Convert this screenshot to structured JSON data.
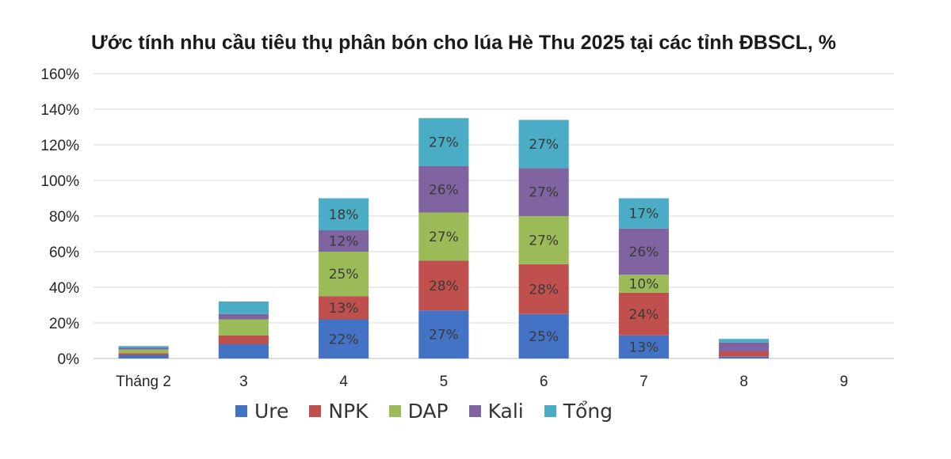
{
  "chart_data": {
    "type": "bar",
    "stacked": true,
    "title": "Ước tính nhu cầu tiêu thụ phân bón cho lúa Hè Thu 2025 tại các tỉnh ĐBSCL, %",
    "xlabel": "",
    "ylabel": "",
    "categories": [
      "Tháng 2",
      "3",
      "4",
      "5",
      "6",
      "7",
      "8",
      "9"
    ],
    "ylim": [
      0,
      160
    ],
    "yticks": [
      "0%",
      "20%",
      "40%",
      "60%",
      "80%",
      "100%",
      "120%",
      "140%",
      "160%"
    ],
    "grid": true,
    "legend_position": "bottom",
    "series": [
      {
        "name": "Ure",
        "color": "#4472C4",
        "values": [
          2,
          8,
          22,
          27,
          25,
          13,
          1,
          0
        ],
        "labels": [
          "",
          "",
          "22%",
          "27%",
          "25%",
          "13%",
          "",
          ""
        ]
      },
      {
        "name": "NPK",
        "color": "#C0504D",
        "values": [
          1,
          5,
          13,
          28,
          28,
          24,
          3,
          0
        ],
        "labels": [
          "",
          "",
          "13%",
          "28%",
          "28%",
          "24%",
          "",
          ""
        ]
      },
      {
        "name": "DAP",
        "color": "#9BBB59",
        "values": [
          2,
          9,
          25,
          27,
          27,
          10,
          0,
          0
        ],
        "labels": [
          "",
          "",
          "25%",
          "27%",
          "27%",
          "10%",
          "",
          ""
        ]
      },
      {
        "name": "Kali",
        "color": "#8064A2",
        "values": [
          1,
          3,
          12,
          26,
          27,
          26,
          5,
          0
        ],
        "labels": [
          "",
          "",
          "12%",
          "26%",
          "27%",
          "26%",
          "",
          ""
        ]
      },
      {
        "name": "Tổng",
        "color": "#4BACC6",
        "values": [
          1,
          7,
          18,
          27,
          27,
          17,
          2,
          0
        ],
        "labels": [
          "",
          "",
          "18%",
          "27%",
          "27%",
          "17%",
          "",
          ""
        ]
      }
    ]
  }
}
